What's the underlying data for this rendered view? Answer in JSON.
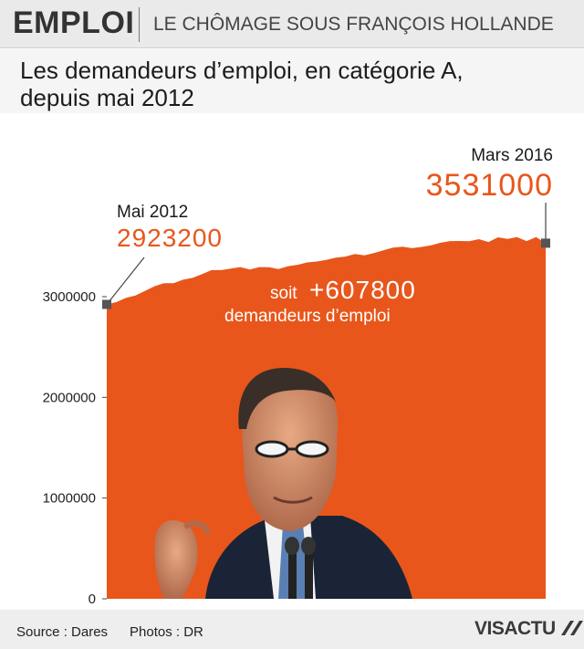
{
  "header": {
    "section": "EMPLOI",
    "topic": "LE CHÔMAGE SOUS FRANÇOIS HOLLANDE"
  },
  "subtitle": {
    "line1": "Les demandeurs d’emploi, en catégorie A,",
    "line2": "depuis mai 2012"
  },
  "annotations": {
    "start_label": "Mai 2012",
    "start_value": "2923200",
    "end_label": "Mars 2016",
    "end_value": "3531000",
    "delta_prefix": "soit",
    "delta_value": "+607800",
    "delta_caption": "demandeurs d’emploi"
  },
  "footer": {
    "source": "Source : Dares",
    "photos": "Photos : DR",
    "logo": "VISACTU"
  },
  "colors": {
    "area": "#e8561b",
    "value_text": "#e8561b",
    "marker": "#555555"
  },
  "chart_data": {
    "type": "area",
    "ylim": [
      0,
      3600000
    ],
    "yticks": [
      0,
      1000000,
      2000000,
      3000000
    ],
    "ytick_labels": [
      "0",
      "1000000",
      "2000000",
      "3000000"
    ],
    "x": [
      "2012-05",
      "2012-06",
      "2012-07",
      "2012-08",
      "2012-09",
      "2012-10",
      "2012-11",
      "2012-12",
      "2013-01",
      "2013-02",
      "2013-03",
      "2013-04",
      "2013-05",
      "2013-06",
      "2013-07",
      "2013-08",
      "2013-09",
      "2013-10",
      "2013-11",
      "2013-12",
      "2014-01",
      "2014-02",
      "2014-03",
      "2014-04",
      "2014-05",
      "2014-06",
      "2014-07",
      "2014-08",
      "2014-09",
      "2014-10",
      "2014-11",
      "2014-12",
      "2015-01",
      "2015-02",
      "2015-03",
      "2015-04",
      "2015-05",
      "2015-06",
      "2015-07",
      "2015-08",
      "2015-09",
      "2015-10",
      "2015-11",
      "2015-12",
      "2016-01",
      "2016-02",
      "2016-03"
    ],
    "values": [
      2923200,
      2946000,
      2987000,
      3011000,
      3057000,
      3103000,
      3133000,
      3133000,
      3169000,
      3187000,
      3224000,
      3264000,
      3264000,
      3279000,
      3294000,
      3269000,
      3294000,
      3293000,
      3275000,
      3303000,
      3316000,
      3340000,
      3349000,
      3364000,
      3388000,
      3398000,
      3424000,
      3411000,
      3432000,
      3460000,
      3488000,
      3496000,
      3481000,
      3494000,
      3509000,
      3536000,
      3552000,
      3553000,
      3551000,
      3571000,
      3543000,
      3589000,
      3574000,
      3591000,
      3552000,
      3591000,
      3531000
    ]
  }
}
